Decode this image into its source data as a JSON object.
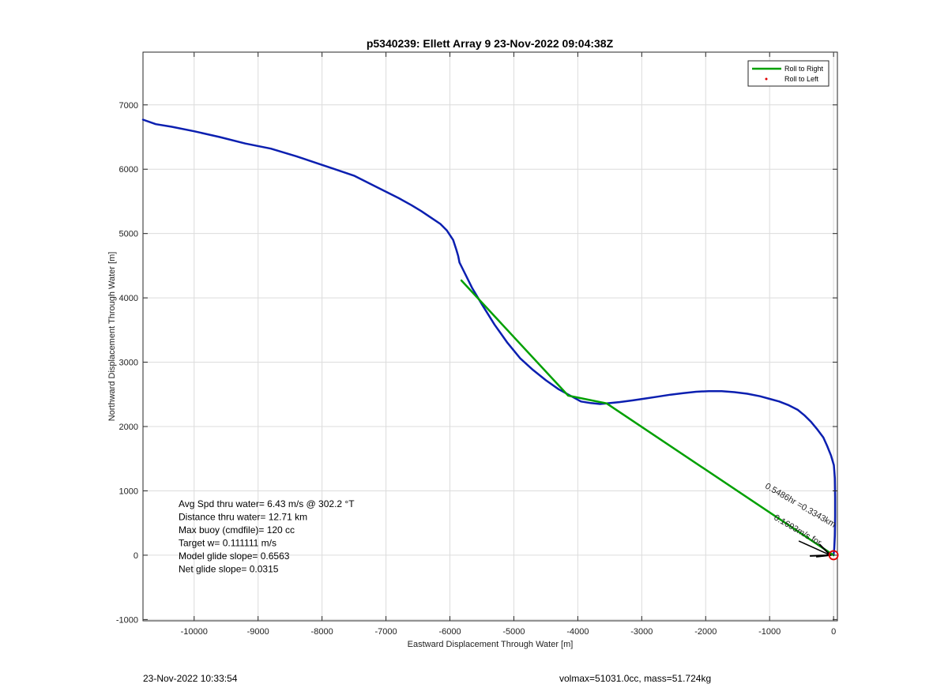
{
  "chart_data": {
    "type": "line",
    "title": "p5340239: Ellett Array 9 23-Nov-2022 09:04:38Z",
    "xlabel": "Eastward Displacement Through Water [m]",
    "ylabel": "Northward Displacement Through Water [m]",
    "xlim": [
      -10800,
      60
    ],
    "ylim": [
      -1020,
      7820
    ],
    "xticks": [
      -10000,
      -9000,
      -8000,
      -7000,
      -6000,
      -5000,
      -4000,
      -3000,
      -2000,
      -1000,
      0
    ],
    "yticks": [
      -1000,
      0,
      1000,
      2000,
      3000,
      4000,
      5000,
      6000,
      7000
    ],
    "grid": true,
    "legend_position": "top-right",
    "legend": [
      {
        "label": "Roll to Right",
        "color": "#00a000",
        "style": "line"
      },
      {
        "label": "Roll to Left",
        "color": "#e00000",
        "style": "dot"
      }
    ],
    "series": [
      {
        "color": "#0b1fb0",
        "x": [
          0,
          10,
          20,
          25,
          25,
          20,
          5,
          -40,
          -100,
          -160,
          -250,
          -350,
          -450,
          -560,
          -700,
          -850,
          -1000,
          -1150,
          -1350,
          -1550,
          -1750,
          -1950,
          -2150,
          -2350,
          -2550,
          -2750,
          -2950,
          -3150,
          -3350,
          -3550,
          -3650,
          -3800,
          -3950,
          -4100,
          -4300,
          -4500,
          -4700,
          -4900,
          -5100,
          -5300,
          -5500,
          -5650,
          -5750,
          -5800,
          -5850,
          -5870,
          -5900,
          -5950,
          -6050,
          -6150,
          -6300,
          -6450,
          -6600,
          -6800,
          -7000,
          -7200,
          -7500,
          -7800,
          -8100,
          -8400,
          -8800,
          -9200,
          -9600,
          -10000,
          -10350,
          -10600,
          -10800
        ],
        "y": [
          0,
          100,
          300,
          600,
          900,
          1200,
          1400,
          1550,
          1700,
          1830,
          1950,
          2070,
          2170,
          2260,
          2330,
          2390,
          2430,
          2470,
          2510,
          2535,
          2550,
          2550,
          2540,
          2520,
          2495,
          2465,
          2435,
          2405,
          2380,
          2360,
          2350,
          2365,
          2390,
          2470,
          2580,
          2720,
          2880,
          3060,
          3300,
          3580,
          3900,
          4150,
          4350,
          4450,
          4550,
          4650,
          4750,
          4900,
          5050,
          5150,
          5250,
          5350,
          5440,
          5550,
          5650,
          5750,
          5900,
          6000,
          6100,
          6200,
          6320,
          6400,
          6500,
          6590,
          6660,
          6700,
          6770
        ]
      },
      {
        "name": "Roll to Right",
        "color": "#00a000",
        "x": [
          0,
          -3550,
          -4150,
          -5820
        ],
        "y": [
          0,
          2360,
          2480,
          4270
        ]
      }
    ],
    "annotations": {
      "stats": [
        "Avg Spd thru water=  6.43 m/s @ 302.2 °T",
        "Distance thru water= 12.71 km",
        "Max buoy (cmdfile)= 120 cc",
        "Target w= 0.111111 m/s",
        "Model glide slope= 0.6563",
        "Net glide slope= 0.0315"
      ],
      "vector_label": "0.5486hr =0.3343km",
      "vector_label_overlap": "0.1693m/s for",
      "vector_label_angle": 30,
      "vector_anchor": {
        "x": -1080,
        "y": 1050
      },
      "vector_end": {
        "x": -50,
        "y": 0
      },
      "marker": {
        "x": 0,
        "y": 0,
        "color": "#e00000"
      }
    }
  },
  "footer": {
    "timestamp": "23-Nov-2022 10:33:54",
    "info": "volmax=51031.0cc, mass=51.724kg"
  }
}
